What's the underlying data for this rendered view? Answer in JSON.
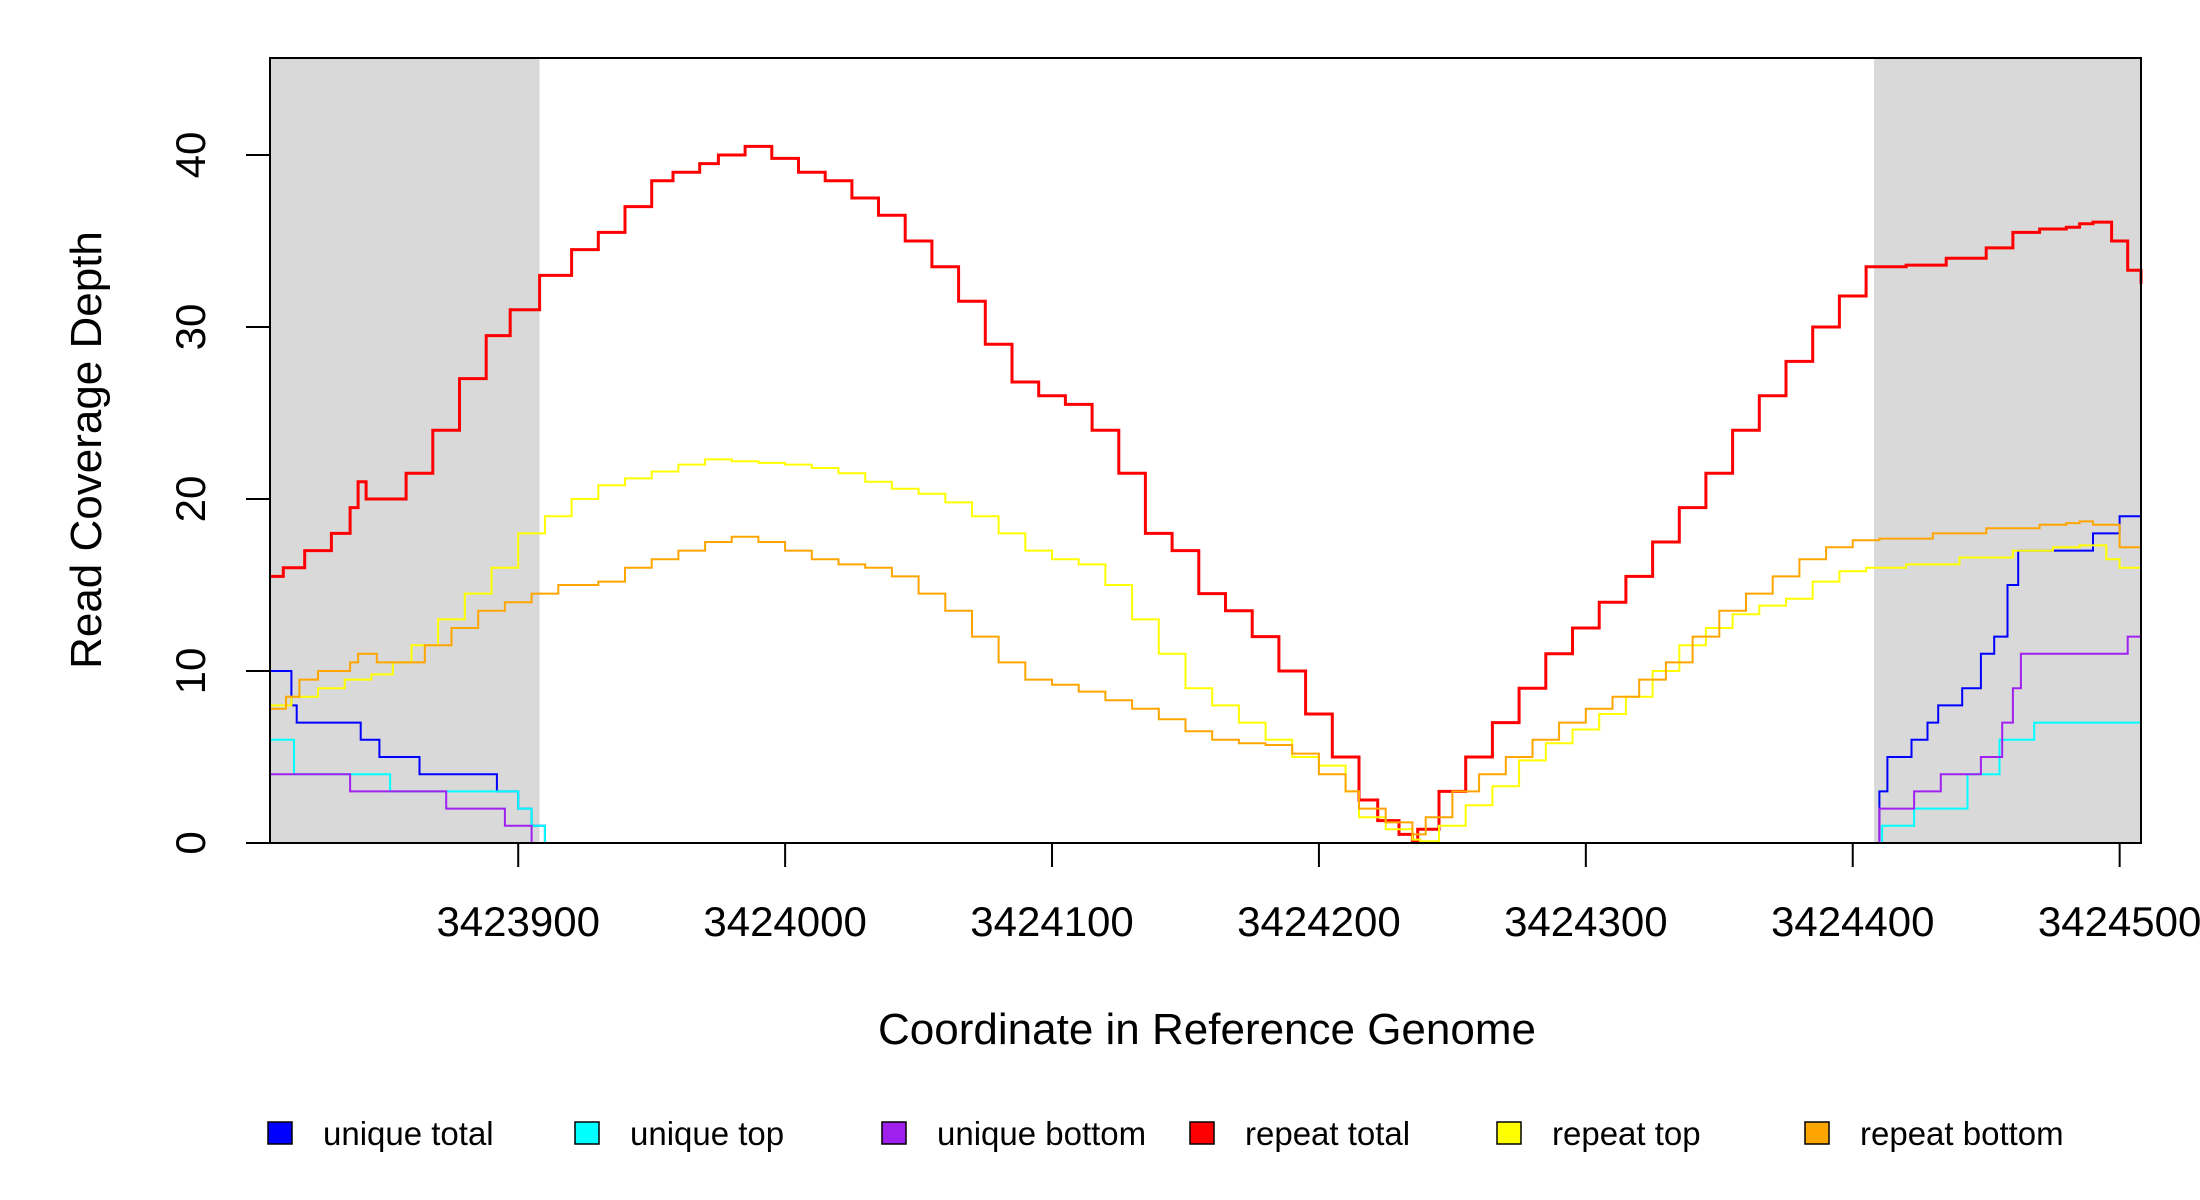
{
  "chart_data": {
    "type": "line",
    "xlabel": "Coordinate in Reference Genome",
    "ylabel": "Read Coverage Depth",
    "xlim": [
      3423807,
      3424508
    ],
    "ylim": [
      0,
      45
    ],
    "x_ticks": [
      3423900,
      3424000,
      3424100,
      3424200,
      3424300,
      3424400,
      3424500
    ],
    "x_tick_labels": [
      "3423900",
      "3424000",
      "3424100",
      "3424200",
      "3424300",
      "3424400",
      "3424500"
    ],
    "y_ticks": [
      0,
      10,
      20,
      30,
      40
    ],
    "y_tick_labels": [
      "0",
      "10",
      "20",
      "30",
      "40"
    ],
    "shaded_regions": [
      [
        3423807,
        3423908
      ],
      [
        3424408,
        3424508
      ]
    ],
    "legend_position": "bottom",
    "series": [
      {
        "name": "unique total",
        "color": "#0000FF",
        "x": [
          3423807,
          3423813,
          3423815,
          3423817,
          3423835,
          3423841,
          3423848,
          3423863,
          3423868,
          3423880,
          3423892,
          3423900,
          3423905,
          3423910,
          3424405,
          3424410,
          3424413,
          3424422,
          3424428,
          3424432,
          3424441,
          3424448,
          3424453,
          3424458,
          3424462,
          3424470,
          3424490,
          3424500,
          3424508
        ],
        "y": [
          10,
          10,
          8,
          7,
          7,
          6,
          5,
          4,
          4,
          4,
          3,
          2,
          1,
          0,
          0,
          3,
          5,
          6,
          7,
          8,
          9,
          11,
          12,
          15,
          17,
          17,
          18,
          19,
          20
        ]
      },
      {
        "name": "unique top",
        "color": "#00FFFF",
        "x": [
          3423807,
          3423811,
          3423816,
          3423836,
          3423852,
          3423900,
          3423905,
          3423910,
          3424405,
          3424411,
          3424423,
          3424443,
          3424455,
          3424468,
          3424508
        ],
        "y": [
          6,
          6,
          4,
          4,
          3,
          2,
          1,
          0,
          0,
          1,
          2,
          4,
          6,
          7,
          7
        ],
        "stroke_width": 2
      },
      {
        "name": "unique bottom",
        "color": "#A020F0",
        "x": [
          3423807,
          3423813,
          3423837,
          3423873,
          3423895,
          3423905,
          3424405,
          3424410,
          3424423,
          3424433,
          3424448,
          3424456,
          3424460,
          3424463,
          3424500,
          3424503,
          3424508
        ],
        "y": [
          4,
          4,
          3,
          2,
          1,
          0,
          0,
          2,
          3,
          4,
          5,
          7,
          9,
          11,
          11,
          12,
          13
        ],
        "stroke_width": 2
      },
      {
        "name": "repeat total",
        "color": "#FF0000",
        "x": [
          3423807,
          3423812,
          3423820,
          3423830,
          3423837,
          3423840,
          3423843,
          3423850,
          3423858,
          3423868,
          3423878,
          3423888,
          3423897,
          3423908,
          3423920,
          3423930,
          3423940,
          3423950,
          3423958,
          3423968,
          3423975,
          3423985,
          3423995,
          3424005,
          3424015,
          3424025,
          3424035,
          3424045,
          3424055,
          3424065,
          3424075,
          3424085,
          3424095,
          3424105,
          3424115,
          3424125,
          3424135,
          3424145,
          3424155,
          3424165,
          3424175,
          3424185,
          3424195,
          3424205,
          3424215,
          3424222,
          3424230,
          3424235,
          3424237,
          3424245,
          3424255,
          3424265,
          3424275,
          3424285,
          3424295,
          3424305,
          3424315,
          3424325,
          3424335,
          3424345,
          3424355,
          3424365,
          3424375,
          3424385,
          3424395,
          3424405,
          3424420,
          3424435,
          3424450,
          3424460,
          3424470,
          3424480,
          3424485,
          3424490,
          3424497,
          3424503,
          3424508
        ],
        "y": [
          15.5,
          16,
          17,
          18,
          19.5,
          21,
          20,
          20,
          21.5,
          24,
          27,
          29.5,
          31,
          33,
          34.5,
          35.5,
          37,
          38.5,
          39,
          39.5,
          40,
          40.5,
          39.8,
          39,
          38.5,
          37.5,
          36.5,
          35,
          33.5,
          31.5,
          29,
          26.8,
          26,
          25.5,
          24,
          21.5,
          18,
          17,
          14.5,
          13.5,
          12,
          10,
          7.5,
          5,
          2.5,
          1.3,
          0.5,
          0.1,
          0.8,
          3,
          5,
          7,
          9,
          11,
          12.5,
          14,
          15.5,
          17.5,
          19.5,
          21.5,
          24,
          26,
          28,
          30,
          31.8,
          33.5,
          33.6,
          34,
          34.6,
          35.5,
          35.7,
          35.8,
          36,
          36.1,
          35,
          33.3,
          32.5
        ],
        "stroke_width": 3
      },
      {
        "name": "repeat top",
        "color": "#FFFF00",
        "x": [
          3423807,
          3423815,
          3423825,
          3423835,
          3423845,
          3423853,
          3423860,
          3423870,
          3423880,
          3423890,
          3423900,
          3423910,
          3423920,
          3423930,
          3423940,
          3423950,
          3423960,
          3423970,
          3423980,
          3423990,
          3424000,
          3424010,
          3424020,
          3424030,
          3424040,
          3424050,
          3424060,
          3424070,
          3424080,
          3424090,
          3424100,
          3424110,
          3424120,
          3424130,
          3424140,
          3424150,
          3424160,
          3424170,
          3424180,
          3424190,
          3424200,
          3424210,
          3424215,
          3424225,
          3424235,
          3424238,
          3424245,
          3424255,
          3424265,
          3424275,
          3424285,
          3424295,
          3424305,
          3424315,
          3424325,
          3424335,
          3424345,
          3424355,
          3424365,
          3424375,
          3424385,
          3424395,
          3424405,
          3424420,
          3424440,
          3424460,
          3424475,
          3424485,
          3424495,
          3424500,
          3424508
        ],
        "y": [
          8,
          8.5,
          9,
          9.5,
          9.8,
          10.5,
          11.5,
          13,
          14.5,
          16,
          18,
          19,
          20,
          20.8,
          21.2,
          21.6,
          22,
          22.3,
          22.2,
          22.1,
          22,
          21.8,
          21.5,
          21,
          20.6,
          20.3,
          19.8,
          19,
          18,
          17,
          16.5,
          16.2,
          15,
          13,
          11,
          9,
          8,
          7,
          6,
          5,
          4.5,
          3,
          1.5,
          0.8,
          0.2,
          0.1,
          1,
          2.2,
          3.3,
          4.8,
          5.8,
          6.6,
          7.5,
          8.5,
          10,
          11.5,
          12.5,
          13.3,
          13.8,
          14.2,
          15.2,
          15.8,
          16,
          16.2,
          16.6,
          17,
          17.2,
          17.3,
          16.5,
          16,
          15.5
        ],
        "stroke_width": 2
      },
      {
        "name": "repeat bottom",
        "color": "#FFA500",
        "x": [
          3423807,
          3423813,
          3423818,
          3423825,
          3423837,
          3423840,
          3423847,
          3423855,
          3423865,
          3423875,
          3423885,
          3423895,
          3423905,
          3423915,
          3423930,
          3423940,
          3423950,
          3423960,
          3423970,
          3423980,
          3423990,
          3424000,
          3424010,
          3424020,
          3424030,
          3424040,
          3424050,
          3424060,
          3424070,
          3424080,
          3424090,
          3424100,
          3424110,
          3424120,
          3424130,
          3424140,
          3424150,
          3424160,
          3424170,
          3424180,
          3424190,
          3424200,
          3424210,
          3424215,
          3424225,
          3424235,
          3424240,
          3424250,
          3424260,
          3424270,
          3424280,
          3424290,
          3424300,
          3424310,
          3424320,
          3424330,
          3424340,
          3424350,
          3424360,
          3424370,
          3424380,
          3424390,
          3424400,
          3424410,
          3424430,
          3424450,
          3424470,
          3424480,
          3424485,
          3424490,
          3424500,
          3424508
        ],
        "y": [
          7.8,
          8.5,
          9.5,
          10,
          10.5,
          11,
          10.5,
          10.5,
          11.5,
          12.5,
          13.5,
          14,
          14.5,
          15,
          15.2,
          16,
          16.5,
          17,
          17.5,
          17.8,
          17.5,
          17,
          16.5,
          16.2,
          16,
          15.5,
          14.5,
          13.5,
          12,
          10.5,
          9.5,
          9.2,
          8.8,
          8.3,
          7.8,
          7.2,
          6.5,
          6,
          5.8,
          5.7,
          5.2,
          4,
          3,
          2,
          1.2,
          0.5,
          1.5,
          3,
          4,
          5,
          6,
          7,
          7.8,
          8.5,
          9.5,
          10.5,
          12,
          13.5,
          14.5,
          15.5,
          16.5,
          17.2,
          17.6,
          17.7,
          18,
          18.3,
          18.5,
          18.6,
          18.7,
          18.5,
          17.2,
          17
        ],
        "stroke_width": 2
      }
    ]
  }
}
